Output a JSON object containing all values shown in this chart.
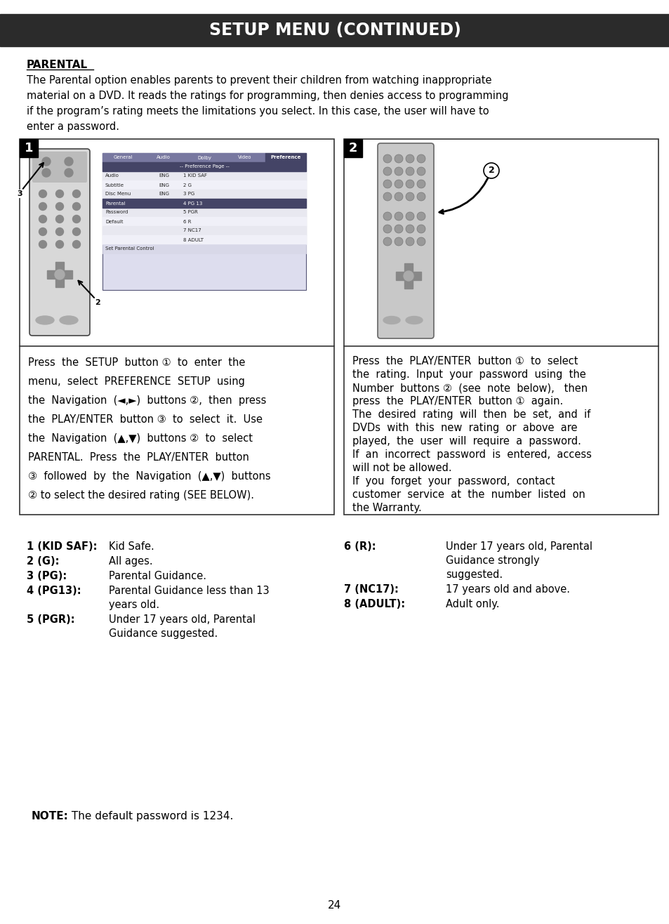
{
  "title": "SETUP MENU (CONTINUED)",
  "title_bg": "#2b2b2b",
  "title_color": "#ffffff",
  "title_fontsize": 17,
  "page_bg": "#ffffff",
  "section_title": "PARENTAL",
  "section_body": "The Parental option enables parents to prevent their children from watching inappropriate\nmaterial on a DVD. It reads the ratings for programming, then denies access to programming\nif the program’s rating meets the limitations you select. In this case, the user will have to\nenter a password.",
  "box1_label": "1",
  "box2_label": "2",
  "box1_text_lines": [
    "Press  the  SETUP  button ①  to  enter  the",
    "menu,  select  PREFERENCE  SETUP  using",
    "the  Navigation  (◄,►)  buttons ②,  then  press",
    "the  PLAY/ENTER  button ③  to  select  it.  Use",
    "the  Navigation  (▲,▼)  buttons ②  to  select",
    "PARENTAL.  Press  the  PLAY/ENTER  button",
    "③  followed  by  the  Navigation  (▲,▼)  buttons",
    "② to select the desired rating (SEE BELOW)."
  ],
  "box2_text_lines": [
    "Press  the  PLAY/ENTER  button ①  to  select",
    "the  rating.  Input  your  password  using  the",
    "Number  buttons ②  (see  note  below),   then",
    "press  the  PLAY/ENTER  button ①  again.",
    "The  desired  rating  will  then  be  set,  and  if",
    "DVDs  with  this  new  rating  or  above  are",
    "played,  the  user  will  require  a  password.",
    "If  an  incorrect  password  is  entered,  access",
    "will not be allowed.",
    "If  you  forget  your  password,  contact",
    "customer  service  at  the  number  listed  on",
    "the Warranty."
  ],
  "ratings_left": [
    {
      "label": "1 (KID SAF):",
      "bold_part": "KID SAF",
      "desc": "Kid Safe.",
      "wrap": false
    },
    {
      "label": "2 (G):",
      "bold_part": "G",
      "desc": "All ages.",
      "wrap": false
    },
    {
      "label": "3 (PG):",
      "bold_part": "PG",
      "desc": "Parental Guidance.",
      "wrap": false
    },
    {
      "label": "4 (PG13):",
      "bold_part": "PG13",
      "desc": "Parental Guidance less than 13\nyears old.",
      "wrap": true
    },
    {
      "label": "5 (PGR):",
      "bold_part": "PGR",
      "desc": "Under 17 years old, Parental\nGuidance suggested.",
      "wrap": true
    }
  ],
  "ratings_right": [
    {
      "label": "6 (R):",
      "bold_part": "R",
      "desc": "Under 17 years old, Parental\nGuidance strongly\nsuggested.",
      "wrap": true
    },
    {
      "label": "7 (NC17):",
      "bold_part": "NC17",
      "desc": "17 years old and above.",
      "wrap": false
    },
    {
      "label": "8 (ADULT):",
      "bold_part": "ADULT",
      "desc": "Adult only.",
      "wrap": false
    }
  ],
  "note_bold": "NOTE:",
  "note_regular": " The default password is 1234.",
  "page_number": "24",
  "menu_tabs": [
    "General",
    "Audio",
    "Dolby",
    "Video",
    "Preference"
  ],
  "menu_rows": [
    [
      "Audio",
      "ENG",
      "1 KID SAF",
      false
    ],
    [
      "Subtitle",
      "ENG",
      "2 G",
      false
    ],
    [
      "Disc Menu",
      "ENG",
      "3 PG",
      false
    ],
    [
      "Parental",
      "",
      "4 PG 13",
      true
    ],
    [
      "Password",
      "",
      "5 PGR",
      false
    ],
    [
      "Default",
      "",
      "6 R",
      false
    ],
    [
      "",
      "",
      "7 NC17",
      false
    ],
    [
      "",
      "",
      "8 ADULT",
      false
    ]
  ]
}
